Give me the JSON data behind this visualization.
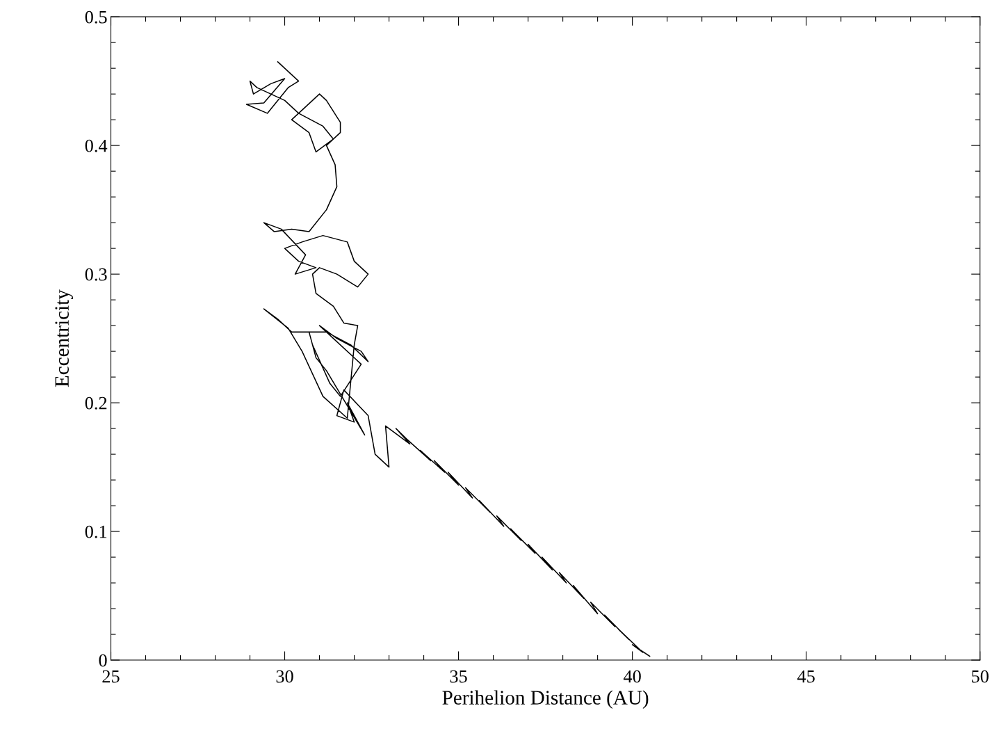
{
  "chart_data": {
    "type": "line",
    "xlabel": "Perihelion Distance (AU)",
    "ylabel": "Eccentricity",
    "xlim": [
      25,
      50
    ],
    "ylim": [
      0,
      0.5
    ],
    "xticks": [
      25,
      {
        "value": 26,
        "label": null
      },
      {
        "value": 27,
        "label": null
      },
      {
        "value": 28,
        "label": null
      },
      {
        "value": 29,
        "label": null
      },
      30,
      {
        "value": 31,
        "label": null
      },
      {
        "value": 32,
        "label": null
      },
      {
        "value": 33,
        "label": null
      },
      {
        "value": 34,
        "label": null
      },
      35,
      {
        "value": 36,
        "label": null
      },
      {
        "value": 37,
        "label": null
      },
      {
        "value": 38,
        "label": null
      },
      {
        "value": 39,
        "label": null
      },
      40,
      {
        "value": 41,
        "label": null
      },
      {
        "value": 42,
        "label": null
      },
      {
        "value": 43,
        "label": null
      },
      {
        "value": 44,
        "label": null
      },
      45,
      {
        "value": 46,
        "label": null
      },
      {
        "value": 47,
        "label": null
      },
      {
        "value": 48,
        "label": null
      },
      {
        "value": 49,
        "label": null
      },
      50
    ],
    "yticks": [
      0,
      {
        "value": 0.02,
        "label": null
      },
      {
        "value": 0.04,
        "label": null
      },
      {
        "value": 0.06,
        "label": null
      },
      {
        "value": 0.08,
        "label": null
      },
      0.1,
      {
        "value": 0.12,
        "label": null
      },
      {
        "value": 0.14,
        "label": null
      },
      {
        "value": 0.16,
        "label": null
      },
      {
        "value": 0.18,
        "label": null
      },
      0.2,
      {
        "value": 0.22,
        "label": null
      },
      {
        "value": 0.24,
        "label": null
      },
      {
        "value": 0.26,
        "label": null
      },
      {
        "value": 0.28,
        "label": null
      },
      0.3,
      {
        "value": 0.32,
        "label": null
      },
      {
        "value": 0.34,
        "label": null
      },
      {
        "value": 0.36,
        "label": null
      },
      {
        "value": 0.38,
        "label": null
      },
      0.4,
      {
        "value": 0.42,
        "label": null
      },
      {
        "value": 0.44,
        "label": null
      },
      {
        "value": 0.46,
        "label": null
      },
      {
        "value": 0.48,
        "label": null
      },
      0.5
    ],
    "grid": false,
    "legend": false,
    "marker": "none",
    "line_style": "solid",
    "series": [
      {
        "color": "#000000",
        "x": [
          40.5,
          40.0,
          40.3,
          39.6,
          39.9,
          39.2,
          39.5,
          38.8,
          39.0,
          38.3,
          38.6,
          37.9,
          38.1,
          37.4,
          37.7,
          37.0,
          37.2,
          36.5,
          36.8,
          36.1,
          36.3,
          35.6,
          35.9,
          35.2,
          35.4,
          34.7,
          35.0,
          34.3,
          34.6,
          33.9,
          34.2,
          33.5,
          33.2,
          33.6,
          32.9,
          33.0,
          32.6,
          32.4,
          31.7,
          31.5,
          32.0,
          31.8,
          32.3,
          31.2,
          30.9,
          30.7,
          30.8,
          31.3,
          31.6,
          32.2,
          31.0,
          31.5,
          32.2,
          32.4,
          31.9,
          31.2,
          30.2,
          29.8,
          29.4,
          30.1,
          30.5,
          31.1,
          31.8,
          32.0,
          32.1,
          31.7,
          31.4,
          30.9,
          30.8,
          31.0,
          31.5,
          32.1,
          32.4,
          32.0,
          31.8,
          31.1,
          30.5,
          30.0,
          30.4,
          30.9,
          30.3,
          30.6,
          29.9,
          29.4,
          29.7,
          30.2,
          30.7,
          31.2,
          31.5,
          31.45,
          31.2,
          31.6,
          31.6,
          31.2,
          31.0,
          30.6,
          30.2,
          30.7,
          30.9,
          31.4,
          31.1,
          30.4,
          30.0,
          29.6,
          29.2,
          29.0,
          29.1,
          29.6,
          30.0,
          29.4,
          28.9,
          29.5,
          30.1,
          30.4,
          29.8
        ],
        "values": [
          0.003,
          0.012,
          0.006,
          0.024,
          0.016,
          0.035,
          0.026,
          0.045,
          0.036,
          0.058,
          0.048,
          0.068,
          0.06,
          0.08,
          0.07,
          0.09,
          0.083,
          0.102,
          0.093,
          0.112,
          0.104,
          0.124,
          0.115,
          0.134,
          0.126,
          0.146,
          0.136,
          0.155,
          0.146,
          0.163,
          0.155,
          0.172,
          0.18,
          0.168,
          0.182,
          0.15,
          0.16,
          0.19,
          0.21,
          0.19,
          0.185,
          0.2,
          0.175,
          0.225,
          0.235,
          0.255,
          0.245,
          0.215,
          0.205,
          0.23,
          0.26,
          0.25,
          0.24,
          0.232,
          0.245,
          0.255,
          0.255,
          0.265,
          0.273,
          0.258,
          0.24,
          0.205,
          0.188,
          0.245,
          0.26,
          0.262,
          0.275,
          0.285,
          0.3,
          0.305,
          0.3,
          0.29,
          0.3,
          0.31,
          0.325,
          0.33,
          0.325,
          0.32,
          0.31,
          0.305,
          0.3,
          0.315,
          0.335,
          0.34,
          0.333,
          0.335,
          0.333,
          0.35,
          0.368,
          0.385,
          0.4,
          0.41,
          0.418,
          0.435,
          0.44,
          0.43,
          0.42,
          0.41,
          0.395,
          0.405,
          0.415,
          0.425,
          0.435,
          0.44,
          0.445,
          0.45,
          0.44,
          0.448,
          0.452,
          0.433,
          0.432,
          0.425,
          0.445,
          0.45,
          0.465
        ]
      }
    ]
  }
}
